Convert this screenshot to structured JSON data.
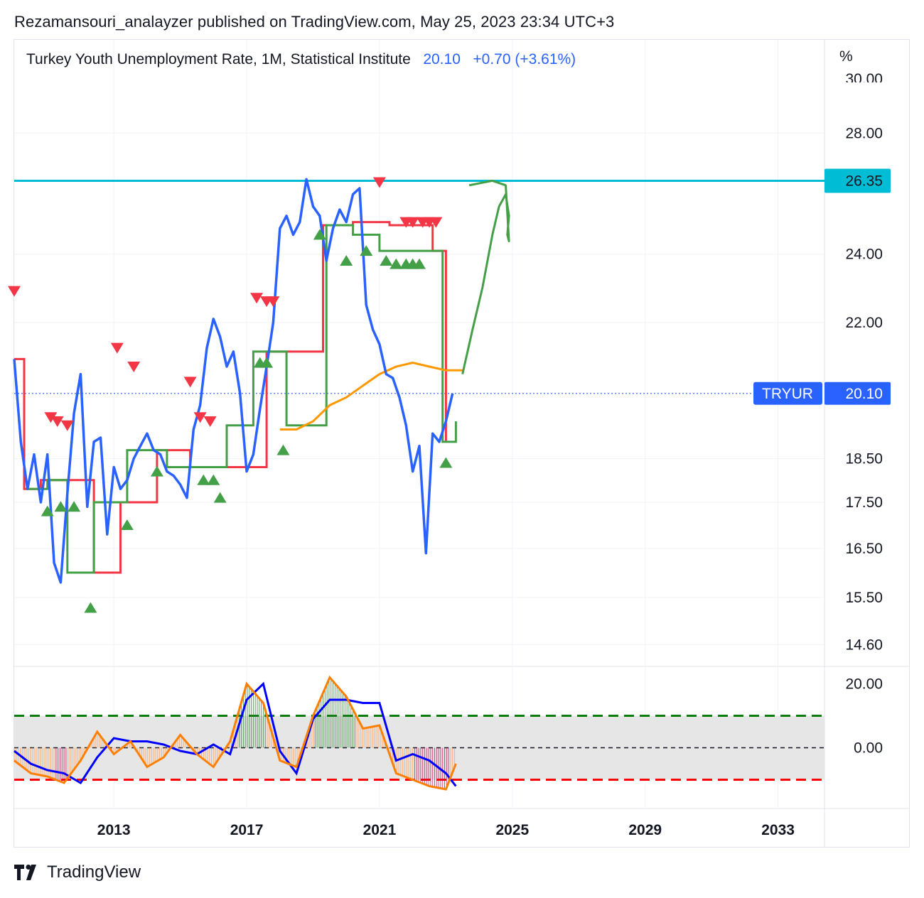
{
  "header": {
    "published_line": "Rezamansouri_analayzer published on TradingView.com, May 25, 2023 23:34 UTC+3"
  },
  "legend": {
    "title": "Turkey Youth Unemployment Rate, 1M, Statistical Institute",
    "last_value": "20.10",
    "change": "+0.70 (+3.61%)"
  },
  "axis_unit": "%",
  "footer": {
    "brand": "TradingView"
  },
  "colors": {
    "price": "#2962ff",
    "resistance_red": "#f23645",
    "support_green": "#43a047",
    "ma_orange": "#ff9800",
    "level_cyan": "#00bcd4",
    "osc_blue": "#0000ff",
    "osc_orange": "#ff7f00",
    "zone_gray": "#e6e6e6"
  },
  "price_tag": {
    "symbol": "TRYUR",
    "value": "20.10"
  },
  "level_tag": {
    "value": "26.35"
  },
  "chart_data": [
    {
      "type": "line",
      "panel": "main",
      "y_scale": "log",
      "ylim": [
        14.2,
        30.3
      ],
      "xlim": [
        2010.0,
        2034.4
      ],
      "y_ticks": [
        "28.00",
        "24.00",
        "22.00",
        "18.50",
        "17.50",
        "16.50",
        "15.50",
        "14.60"
      ],
      "y_tick_values": [
        28,
        24,
        22,
        18.5,
        17.5,
        16.5,
        15.5,
        14.6
      ],
      "partial_top_tick": "30.00",
      "x_ticks": [
        "2013",
        "2017",
        "2021",
        "2025",
        "2029",
        "2033"
      ],
      "x_tick_values": [
        2013,
        2017,
        2021,
        2025,
        2029,
        2033
      ],
      "horizontal_level": 26.35,
      "last_price_line": 20.1,
      "series": [
        {
          "role": "price",
          "x": [
            2010.0,
            2010.2,
            2010.4,
            2010.6,
            2010.8,
            2011.0,
            2011.2,
            2011.4,
            2011.6,
            2011.8,
            2012.0,
            2012.2,
            2012.4,
            2012.6,
            2012.8,
            2013.0,
            2013.2,
            2013.4,
            2013.6,
            2013.8,
            2014.0,
            2014.2,
            2014.4,
            2014.6,
            2014.8,
            2015.0,
            2015.2,
            2015.4,
            2015.6,
            2015.8,
            2016.0,
            2016.2,
            2016.4,
            2016.6,
            2016.8,
            2017.0,
            2017.2,
            2017.4,
            2017.6,
            2017.8,
            2018.0,
            2018.2,
            2018.4,
            2018.6,
            2018.8,
            2019.0,
            2019.2,
            2019.4,
            2019.6,
            2019.8,
            2020.0,
            2020.2,
            2020.4,
            2020.6,
            2020.8,
            2021.0,
            2021.2,
            2021.4,
            2021.6,
            2021.8,
            2022.0,
            2022.2,
            2022.4,
            2022.6,
            2022.8,
            2023.0,
            2023.2
          ],
          "y": [
            21.0,
            18.9,
            17.8,
            18.6,
            17.5,
            18.6,
            16.2,
            15.8,
            17.7,
            19.6,
            20.6,
            17.4,
            18.9,
            19.0,
            16.8,
            18.3,
            17.8,
            18.0,
            18.5,
            18.8,
            19.1,
            18.7,
            18.6,
            18.2,
            18.1,
            17.9,
            17.6,
            19.2,
            19.8,
            21.3,
            22.1,
            21.6,
            20.8,
            21.2,
            20.1,
            18.2,
            18.6,
            19.7,
            20.8,
            22.0,
            24.8,
            25.2,
            24.6,
            25.0,
            26.4,
            25.5,
            25.2,
            23.8,
            24.8,
            25.4,
            25.0,
            25.9,
            26.1,
            22.5,
            21.8,
            21.4,
            20.6,
            20.5,
            20.0,
            19.3,
            18.2,
            18.8,
            16.4,
            19.1,
            18.9,
            19.4,
            20.1
          ]
        },
        {
          "role": "resistance_step",
          "x": [
            2010.0,
            2010.3,
            2010.8,
            2011.5,
            2012.4,
            2013.2,
            2014.3,
            2015.3,
            2016.0,
            2017.6,
            2019.3,
            2020.2,
            2021.0,
            2021.3,
            2022.6,
            2023.0
          ],
          "y": [
            21.0,
            17.8,
            18.0,
            18.0,
            16.0,
            17.5,
            18.7,
            18.3,
            18.3,
            21.2,
            24.9,
            25.0,
            25.0,
            24.9,
            24.1,
            18.9
          ]
        },
        {
          "role": "support_step",
          "x": [
            2010.4,
            2011.0,
            2011.6,
            2012.4,
            2013.4,
            2014.6,
            2015.4,
            2016.4,
            2017.2,
            2018.2,
            2019.4,
            2020.2,
            2021.0,
            2022.4,
            2022.9,
            2023.3
          ],
          "y": [
            17.8,
            18.0,
            16.0,
            17.5,
            18.7,
            18.3,
            18.3,
            19.3,
            21.2,
            19.3,
            24.9,
            24.6,
            24.1,
            24.1,
            18.9,
            19.4
          ]
        },
        {
          "role": "moving_average",
          "x": [
            2018.0,
            2018.5,
            2019.0,
            2019.5,
            2020.0,
            2020.5,
            2021.0,
            2021.5,
            2022.0,
            2022.5,
            2023.0,
            2023.5
          ],
          "y": [
            19.2,
            19.2,
            19.4,
            19.8,
            20.0,
            20.3,
            20.6,
            20.8,
            20.9,
            20.8,
            20.7,
            20.7
          ]
        },
        {
          "role": "drawn_projection",
          "x": [
            2023.5,
            2023.8,
            2024.1,
            2024.4,
            2024.6,
            2024.8,
            2024.9,
            2024.85,
            2024.9,
            2024.8,
            2024.4,
            2023.7
          ],
          "y": [
            20.6,
            21.8,
            23.0,
            24.6,
            25.5,
            25.9,
            25.2,
            24.6,
            24.4,
            26.2,
            26.35,
            26.2
          ]
        }
      ],
      "markers": {
        "down_triangles": {
          "x": [
            2010.0,
            2011.1,
            2011.3,
            2011.6,
            2013.1,
            2013.6,
            2015.3,
            2015.6,
            2015.9,
            2017.3,
            2017.6,
            2017.8,
            2021.0,
            2021.8,
            2022.0,
            2022.3,
            2022.5,
            2022.7
          ],
          "y": [
            22.9,
            19.5,
            19.4,
            19.3,
            21.3,
            20.8,
            20.4,
            19.5,
            19.4,
            22.7,
            22.6,
            22.6,
            26.3,
            25.0,
            25.0,
            25.0,
            25.0,
            25.0
          ]
        },
        "up_triangles": {
          "x": [
            2011.0,
            2011.4,
            2011.8,
            2012.3,
            2013.4,
            2014.3,
            2015.7,
            2016.0,
            2016.2,
            2017.4,
            2017.6,
            2018.1,
            2019.2,
            2020.0,
            2020.6,
            2021.2,
            2021.5,
            2021.8,
            2022.0,
            2022.2,
            2023.0
          ],
          "y": [
            17.3,
            17.4,
            17.4,
            15.3,
            17.0,
            18.2,
            18.0,
            18.0,
            17.6,
            20.9,
            20.9,
            18.7,
            24.6,
            23.8,
            24.1,
            23.8,
            23.7,
            23.7,
            23.7,
            23.7,
            18.4
          ]
        }
      }
    },
    {
      "type": "area",
      "panel": "oscillator",
      "ylim": [
        -19,
        25
      ],
      "y_ticks": [
        "20.00",
        "0.00"
      ],
      "y_tick_values": [
        20,
        0
      ],
      "upper_band": 10,
      "lower_band": -10,
      "zero_line": 0,
      "series": [
        {
          "role": "fast",
          "x": [
            2010.0,
            2010.5,
            2011.0,
            2011.5,
            2012.0,
            2012.5,
            2013.0,
            2013.5,
            2014.0,
            2014.5,
            2015.0,
            2015.5,
            2016.0,
            2016.5,
            2017.0,
            2017.5,
            2018.0,
            2018.5,
            2019.0,
            2019.5,
            2020.0,
            2020.5,
            2021.0,
            2021.5,
            2022.0,
            2022.5,
            2023.0,
            2023.3
          ],
          "y": [
            -4,
            -8,
            -9,
            -11,
            -4,
            5,
            -2,
            2,
            -6,
            -3,
            4,
            -2,
            -6,
            2,
            20,
            14,
            -4,
            -6,
            10,
            22,
            16,
            6,
            7,
            -8,
            -10,
            -12,
            -13,
            -5
          ]
        },
        {
          "role": "slow",
          "x": [
            2010.0,
            2010.5,
            2011.0,
            2011.5,
            2012.0,
            2012.5,
            2013.0,
            2013.5,
            2014.0,
            2014.5,
            2015.0,
            2015.5,
            2016.0,
            2016.5,
            2017.0,
            2017.5,
            2018.0,
            2018.5,
            2019.0,
            2019.5,
            2020.0,
            2020.5,
            2021.0,
            2021.5,
            2022.0,
            2022.5,
            2023.0,
            2023.3
          ],
          "y": [
            -1,
            -5,
            -7,
            -8,
            -11,
            -3,
            3,
            2,
            2,
            1,
            -1,
            -2,
            1,
            -2,
            15,
            20,
            -1,
            -8,
            9,
            15,
            15,
            14,
            14,
            -4,
            -2,
            -4,
            -8,
            -12
          ]
        }
      ]
    }
  ]
}
